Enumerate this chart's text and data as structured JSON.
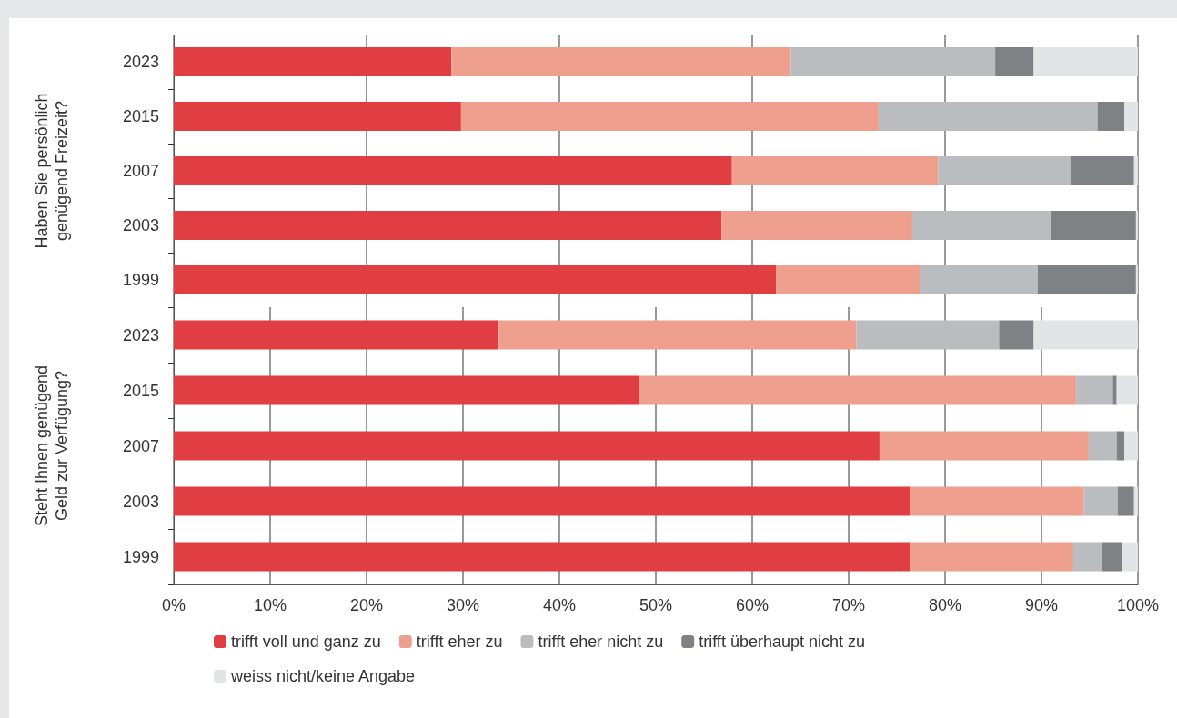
{
  "chart_data": [
    {
      "type": "bar",
      "orientation": "horizontal",
      "stacked": true,
      "ylabel": "Haben Sie persönlich\ngenügend Freizeit?",
      "categories": [
        "2023",
        "2015",
        "2007",
        "2003",
        "1999"
      ],
      "xlim": [
        0,
        100
      ],
      "grid": "x",
      "tick_labels": "y",
      "series": [
        {
          "color": "#e03e43",
          "values": [
            28.8,
            29.8,
            57.9,
            56.8,
            62.5
          ]
        },
        {
          "color": "#ee9f8d",
          "values": [
            35.2,
            43.3,
            21.4,
            19.8,
            14.9
          ]
        },
        {
          "color": "#bbbcbf",
          "values": [
            21.2,
            22.7,
            13.7,
            14.4,
            12.2
          ]
        },
        {
          "color": "#808184",
          "values": [
            4.0,
            2.8,
            6.6,
            8.8,
            10.2
          ]
        },
        {
          "color": "#e3e4e6",
          "values": [
            10.8,
            1.4,
            0.4,
            0.2,
            0.2
          ]
        }
      ]
    },
    {
      "type": "bar",
      "orientation": "horizontal",
      "stacked": true,
      "ylabel": "Steht Ihnen genügend\nGeld zur Verfügung?",
      "categories": [
        "2023",
        "2015",
        "2007",
        "2003",
        "1999"
      ],
      "xlim": [
        0,
        100
      ],
      "xticks": [
        {
          "value": 0,
          "label": "0%"
        },
        {
          "value": 10,
          "label": "10%"
        },
        {
          "value": 20,
          "label": "20%"
        },
        {
          "value": 30,
          "label": "30%"
        },
        {
          "value": 40,
          "label": "40%"
        },
        {
          "value": 50,
          "label": "50%"
        },
        {
          "value": 60,
          "label": "60%"
        },
        {
          "value": 70,
          "label": "70%"
        },
        {
          "value": 80,
          "label": "80%"
        },
        {
          "value": 90,
          "label": "90%"
        },
        {
          "value": 100,
          "label": "100%"
        }
      ],
      "grid": "x",
      "legend": "bottom",
      "series": [
        {
          "name": "trifft voll und ganz zu",
          "color": "#e03e43",
          "values": [
            33.7,
            48.3,
            73.2,
            76.4,
            76.4
          ]
        },
        {
          "name": "trifft eher zu",
          "color": "#ee9f8d",
          "values": [
            37.1,
            45.3,
            21.7,
            18.0,
            16.9
          ]
        },
        {
          "name": "trifft eher nicht zu",
          "color": "#bbbcbf",
          "values": [
            14.8,
            3.8,
            2.9,
            3.5,
            3.0
          ]
        },
        {
          "name": "trifft überhaupt nicht zu",
          "color": "#808184",
          "values": [
            3.6,
            0.4,
            0.8,
            1.7,
            2.0
          ]
        },
        {
          "name": "weiss nicht/keine Angabe",
          "color": "#e3e4e6",
          "values": [
            10.8,
            2.2,
            1.4,
            0.4,
            1.7
          ]
        }
      ]
    }
  ]
}
